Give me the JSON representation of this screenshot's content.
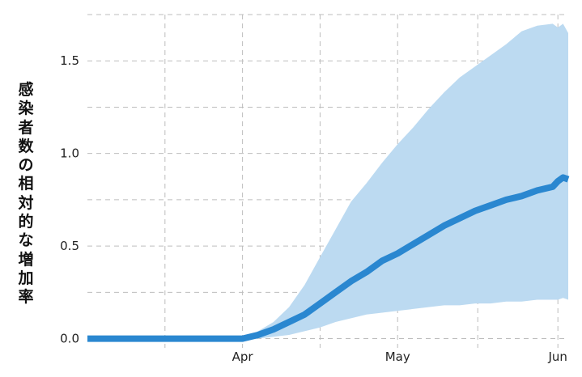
{
  "chart_data": {
    "type": "area",
    "title": "",
    "xlabel": "",
    "ylabel": "感染者数の相対的な増加率",
    "x_tick_labels": [
      "Apr",
      "May",
      "Jun"
    ],
    "x_tick_dates": [
      "2020-04-01",
      "2020-05-01",
      "2020-06-01"
    ],
    "x_range": [
      "2020-03-02",
      "2020-06-03"
    ],
    "y_ticks": [
      0.0,
      0.5,
      1.0,
      1.5
    ],
    "y_tick_labels": [
      "0.0",
      "0.5",
      "1.0",
      "1.5"
    ],
    "ylim": [
      -0.05,
      1.75
    ],
    "grid": true,
    "colors": {
      "line": "#2a87d0",
      "band": "#bcdaf1",
      "grid": "#bdbdbd"
    },
    "series": [
      {
        "x": [
          "2020-03-02",
          "2020-03-08",
          "2020-03-14",
          "2020-03-20",
          "2020-03-26",
          "2020-04-01",
          "2020-04-04",
          "2020-04-07",
          "2020-04-10",
          "2020-04-13",
          "2020-04-16",
          "2020-04-19",
          "2020-04-22",
          "2020-04-25",
          "2020-04-28",
          "2020-05-01",
          "2020-05-04",
          "2020-05-07",
          "2020-05-10",
          "2020-05-13",
          "2020-05-16",
          "2020-05-19",
          "2020-05-22",
          "2020-05-25",
          "2020-05-28",
          "2020-05-31",
          "2020-06-01",
          "2020-06-02",
          "2020-06-03"
        ],
        "y": [
          0,
          0,
          0,
          0,
          0,
          0,
          0.02,
          0.05,
          0.09,
          0.13,
          0.19,
          0.25,
          0.31,
          0.36,
          0.42,
          0.46,
          0.51,
          0.56,
          0.61,
          0.65,
          0.69,
          0.72,
          0.75,
          0.77,
          0.8,
          0.82,
          0.85,
          0.87,
          0.86
        ],
        "lower": [
          0,
          0,
          0,
          0,
          0,
          0,
          0,
          0.01,
          0.02,
          0.04,
          0.06,
          0.09,
          0.11,
          0.13,
          0.14,
          0.15,
          0.16,
          0.17,
          0.18,
          0.18,
          0.19,
          0.19,
          0.2,
          0.2,
          0.21,
          0.21,
          0.21,
          0.22,
          0.21
        ],
        "upper": [
          0,
          0,
          0,
          0,
          0,
          0,
          0.04,
          0.09,
          0.17,
          0.29,
          0.44,
          0.59,
          0.74,
          0.84,
          0.95,
          1.05,
          1.14,
          1.24,
          1.33,
          1.41,
          1.47,
          1.53,
          1.59,
          1.66,
          1.69,
          1.7,
          1.68,
          1.7,
          1.65
        ]
      }
    ]
  }
}
